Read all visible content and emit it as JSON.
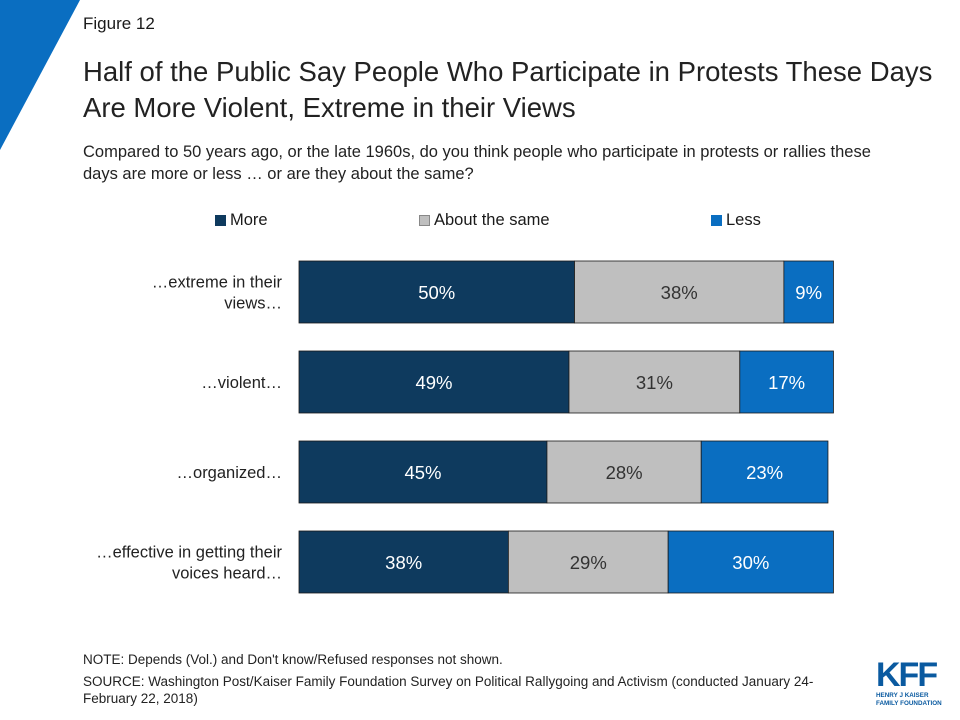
{
  "figure_label": "Figure 12",
  "title": "Half of the Public Say People Who Participate in Protests These Days Are More Violent, Extreme in their Views",
  "subtitle": "Compared to 50 years ago, or the late 1960s, do you think people who participate in protests or rallies these days are more or less … or are they about the same?",
  "colors": {
    "more": "#0e3a5e",
    "same": "#bfbfbf",
    "less": "#0a6ec1",
    "brand": "#0a6ec1"
  },
  "chart_data": {
    "type": "bar",
    "orientation": "horizontal",
    "stacked": true,
    "categories": [
      "…extreme in their views…",
      "…violent…",
      "…organized…",
      "…effective in getting their voices heard…"
    ],
    "series": [
      {
        "name": "More",
        "values": [
          50,
          49,
          45,
          38
        ]
      },
      {
        "name": "About the same",
        "values": [
          38,
          31,
          28,
          29
        ]
      },
      {
        "name": "Less",
        "values": [
          9,
          17,
          23,
          30
        ]
      }
    ],
    "value_labels": [
      [
        "50%",
        "38%",
        "9%"
      ],
      [
        "49%",
        "31%",
        "17%"
      ],
      [
        "45%",
        "28%",
        "23%"
      ],
      [
        "38%",
        "29%",
        "30%"
      ]
    ],
    "xlim": [
      0,
      100
    ],
    "legend_position": "top",
    "grid": false
  },
  "note": "NOTE: Depends (Vol.) and Don't know/Refused responses not shown.",
  "source": "SOURCE: Washington Post/Kaiser Family Foundation Survey on Political Rallygoing and Activism (conducted January 24-February 22, 2018)",
  "logo": {
    "letters": "KFF",
    "line1": "HENRY J KAISER",
    "line2": "FAMILY FOUNDATION"
  }
}
